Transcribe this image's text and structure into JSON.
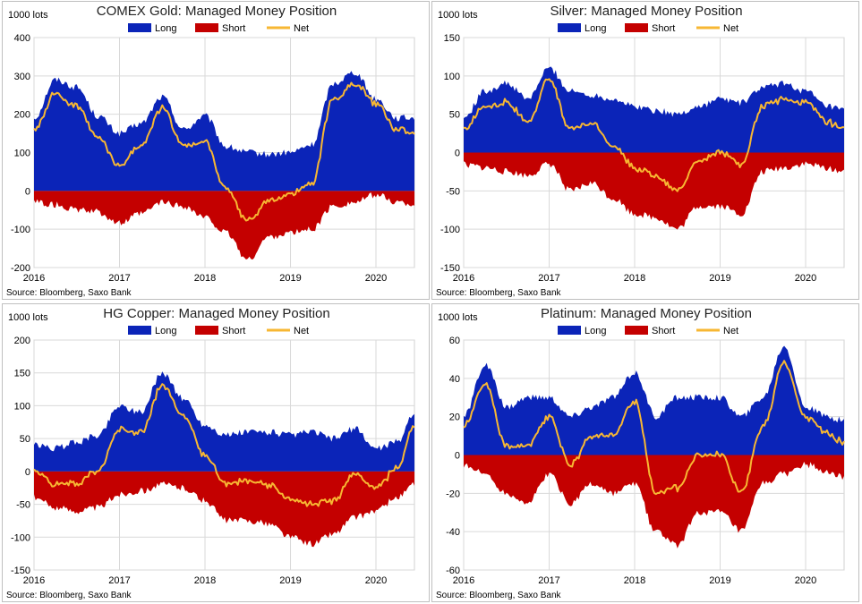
{
  "chart_data": [
    {
      "type": "area",
      "title": "COMEX Gold: Managed Money Position",
      "unit_label": "1000 lots",
      "source": "Source: Bloomberg, Saxo Bank",
      "legend": [
        "Long",
        "Short",
        "Net"
      ],
      "legend_placement": "top-center",
      "grid": true,
      "ylim": [
        -200,
        400
      ],
      "yticks": [
        "400",
        "300",
        "200",
        "100",
        "0",
        "-100",
        "-200"
      ],
      "xticks": [
        "2016",
        "2017",
        "2018",
        "2019",
        "2020"
      ],
      "xlim": [
        2016.0,
        2020.45
      ],
      "x": [
        2016.0,
        2016.25,
        2016.5,
        2016.75,
        2017.0,
        2017.25,
        2017.5,
        2017.75,
        2018.0,
        2018.25,
        2018.5,
        2018.75,
        2019.0,
        2019.25,
        2019.5,
        2019.75,
        2020.0,
        2020.25,
        2020.45
      ],
      "series": [
        {
          "name": "Long",
          "values": [
            190,
            290,
            270,
            195,
            150,
            175,
            245,
            160,
            195,
            115,
            100,
            95,
            100,
            120,
            280,
            310,
            240,
            190,
            190
          ]
        },
        {
          "name": "Short",
          "values": [
            -30,
            -35,
            -50,
            -55,
            -85,
            -60,
            -30,
            -40,
            -70,
            -110,
            -180,
            -120,
            -110,
            -100,
            -40,
            -30,
            -10,
            -30,
            -35
          ]
        },
        {
          "name": "Net",
          "values": [
            160,
            255,
            220,
            140,
            65,
            115,
            215,
            120,
            125,
            5,
            -80,
            -25,
            -10,
            20,
            240,
            280,
            230,
            160,
            150
          ]
        }
      ],
      "colors": {
        "long": "#0b24b8",
        "short": "#c40000",
        "net": "#f7b733"
      }
    },
    {
      "type": "area",
      "title": "Silver: Managed Money Position",
      "unit_label": "1000 lots",
      "source": "Source: Bloomberg, Saxo Bank",
      "legend": [
        "Long",
        "Short",
        "Net"
      ],
      "legend_placement": "top-center",
      "grid": true,
      "ylim": [
        -150,
        150
      ],
      "yticks": [
        "150",
        "100",
        "50",
        "0",
        "-50",
        "-100",
        "-150"
      ],
      "xticks": [
        "2016",
        "2017",
        "2018",
        "2019",
        "2020"
      ],
      "xlim": [
        2016.0,
        2020.45
      ],
      "x": [
        2016.0,
        2016.25,
        2016.5,
        2016.75,
        2017.0,
        2017.25,
        2017.5,
        2017.75,
        2018.0,
        2018.25,
        2018.5,
        2018.75,
        2019.0,
        2019.25,
        2019.5,
        2019.75,
        2020.0,
        2020.25,
        2020.45
      ],
      "series": [
        {
          "name": "Long",
          "values": [
            45,
            80,
            90,
            70,
            110,
            80,
            75,
            70,
            60,
            55,
            50,
            60,
            70,
            65,
            85,
            90,
            80,
            60,
            55
          ]
        },
        {
          "name": "Short",
          "values": [
            -15,
            -20,
            -25,
            -30,
            -15,
            -50,
            -40,
            -60,
            -80,
            -85,
            -100,
            -70,
            -70,
            -80,
            -25,
            -20,
            -15,
            -20,
            -25
          ]
        },
        {
          "name": "Net",
          "values": [
            30,
            60,
            65,
            40,
            95,
            30,
            45,
            10,
            -20,
            -30,
            -50,
            -10,
            0,
            -15,
            60,
            70,
            65,
            40,
            30
          ]
        }
      ],
      "colors": {
        "long": "#0b24b8",
        "short": "#c40000",
        "net": "#f7b733"
      }
    },
    {
      "type": "area",
      "title": "HG Copper: Managed Money Position",
      "unit_label": "1000 lots",
      "source": "Source: Bloomberg, Saxo Bank",
      "legend": [
        "Long",
        "Short",
        "Net"
      ],
      "legend_placement": "top-center",
      "grid": true,
      "ylim": [
        -150,
        200
      ],
      "yticks": [
        "200",
        "150",
        "100",
        "50",
        "0",
        "-50",
        "-100",
        "-150"
      ],
      "xticks": [
        "2016",
        "2017",
        "2018",
        "2019",
        "2020"
      ],
      "xlim": [
        2016.0,
        2020.45
      ],
      "x": [
        2016.0,
        2016.25,
        2016.5,
        2016.75,
        2017.0,
        2017.25,
        2017.5,
        2017.75,
        2018.0,
        2018.25,
        2018.5,
        2018.75,
        2019.0,
        2019.25,
        2019.5,
        2019.75,
        2020.0,
        2020.25,
        2020.45
      ],
      "series": [
        {
          "name": "Long",
          "values": [
            40,
            35,
            45,
            55,
            100,
            90,
            150,
            110,
            70,
            55,
            60,
            60,
            55,
            60,
            50,
            65,
            35,
            45,
            90
          ]
        },
        {
          "name": "Short",
          "values": [
            -40,
            -55,
            -60,
            -55,
            -35,
            -30,
            -20,
            -25,
            -45,
            -75,
            -75,
            -80,
            -100,
            -110,
            -95,
            -70,
            -60,
            -40,
            -20
          ]
        },
        {
          "name": "Net",
          "values": [
            0,
            -20,
            -20,
            0,
            65,
            60,
            130,
            85,
            25,
            -20,
            -15,
            -20,
            -45,
            -50,
            -45,
            -5,
            -25,
            5,
            70
          ]
        }
      ],
      "colors": {
        "long": "#0b24b8",
        "short": "#c40000",
        "net": "#f7b733"
      }
    },
    {
      "type": "area",
      "title": "Platinum: Managed Money Position",
      "unit_label": "1000 lots",
      "source": "Source: Bloomberg, Saxo Bank",
      "legend": [
        "Long",
        "Short",
        "Net"
      ],
      "legend_placement": "top-center",
      "grid": true,
      "ylim": [
        -60,
        60
      ],
      "yticks": [
        "60",
        "40",
        "20",
        "0",
        "-20",
        "-40",
        "-60"
      ],
      "xticks": [
        "2016",
        "2017",
        "2018",
        "2019",
        "2020"
      ],
      "xlim": [
        2016.0,
        2020.45
      ],
      "x": [
        2016.0,
        2016.25,
        2016.5,
        2016.75,
        2017.0,
        2017.25,
        2017.5,
        2017.75,
        2018.0,
        2018.25,
        2018.5,
        2018.75,
        2019.0,
        2019.25,
        2019.5,
        2019.75,
        2020.0,
        2020.25,
        2020.45
      ],
      "series": [
        {
          "name": "Long",
          "values": [
            20,
            47,
            25,
            30,
            30,
            20,
            25,
            30,
            43,
            20,
            30,
            30,
            30,
            20,
            30,
            57,
            25,
            20,
            18
          ]
        },
        {
          "name": "Short",
          "values": [
            -5,
            -10,
            -20,
            -25,
            -10,
            -25,
            -15,
            -20,
            -15,
            -40,
            -47,
            -30,
            -30,
            -40,
            -15,
            -10,
            -5,
            -8,
            -12
          ]
        },
        {
          "name": "Net",
          "values": [
            15,
            37,
            5,
            5,
            20,
            -5,
            10,
            10,
            28,
            -20,
            -17,
            0,
            0,
            -20,
            15,
            50,
            20,
            12,
            6
          ]
        }
      ],
      "colors": {
        "long": "#0b24b8",
        "short": "#c40000",
        "net": "#f7b733"
      }
    }
  ]
}
